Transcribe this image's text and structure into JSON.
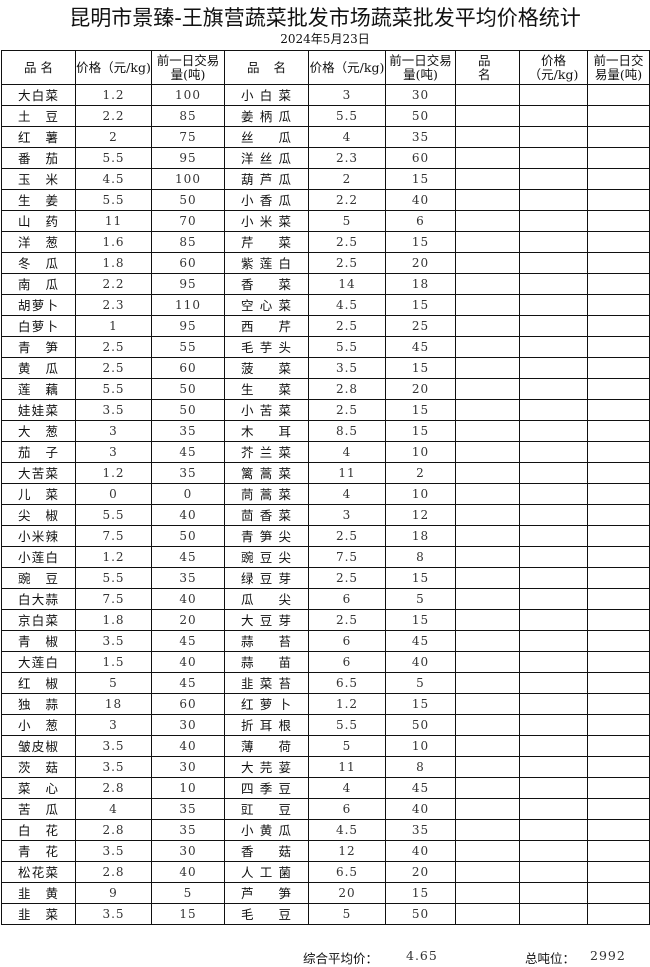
{
  "title": "昆明市景臻-王旗营蔬菜批发市场蔬菜批发平均价格统计",
  "date": "2024年5月23日",
  "headers": {
    "name": "品名",
    "price": "价格（元/kg)",
    "volume": "前一日交易量(吨)"
  },
  "left": [
    [
      "大白菜",
      "1.2",
      "100"
    ],
    [
      "土豆",
      "2.2",
      "85"
    ],
    [
      "红薯",
      "2",
      "75"
    ],
    [
      "番茄",
      "5.5",
      "95"
    ],
    [
      "玉米",
      "4.5",
      "100"
    ],
    [
      "生姜",
      "5.5",
      "50"
    ],
    [
      "山药",
      "11",
      "70"
    ],
    [
      "洋葱",
      "1.6",
      "85"
    ],
    [
      "冬瓜",
      "1.8",
      "60"
    ],
    [
      "南瓜",
      "2.2",
      "95"
    ],
    [
      "胡萝卜",
      "2.3",
      "110"
    ],
    [
      "白萝卜",
      "1",
      "95"
    ],
    [
      "青笋",
      "2.5",
      "55"
    ],
    [
      "黄瓜",
      "2.5",
      "60"
    ],
    [
      "莲藕",
      "5.5",
      "50"
    ],
    [
      "娃娃菜",
      "3.5",
      "50"
    ],
    [
      "大葱",
      "3",
      "35"
    ],
    [
      "茄子",
      "3",
      "45"
    ],
    [
      "大苦菜",
      "1.2",
      "35"
    ],
    [
      "儿菜",
      "0",
      "0"
    ],
    [
      "尖椒",
      "5.5",
      "40"
    ],
    [
      "小米辣",
      "7.5",
      "50"
    ],
    [
      "小莲白",
      "1.2",
      "45"
    ],
    [
      "豌豆",
      "5.5",
      "35"
    ],
    [
      "白大蒜",
      "7.5",
      "40"
    ],
    [
      "京白菜",
      "1.8",
      "20"
    ],
    [
      "青椒",
      "3.5",
      "45"
    ],
    [
      "大莲白",
      "1.5",
      "40"
    ],
    [
      "红椒",
      "5",
      "45"
    ],
    [
      "独蒜",
      "18",
      "60"
    ],
    [
      "小葱",
      "3",
      "30"
    ],
    [
      "皱皮椒",
      "3.5",
      "40"
    ],
    [
      "茨菇",
      "3.5",
      "30"
    ],
    [
      "菜心",
      "2.8",
      "10"
    ],
    [
      "苦瓜",
      "4",
      "35"
    ],
    [
      "白花",
      "2.8",
      "35"
    ],
    [
      "青花",
      "3.5",
      "30"
    ],
    [
      "松花菜",
      "2.8",
      "40"
    ],
    [
      "韭黄",
      "9",
      "5"
    ],
    [
      "韭菜",
      "3.5",
      "15"
    ]
  ],
  "right": [
    [
      "小白菜",
      "3",
      "30"
    ],
    [
      "姜柄瓜",
      "5.5",
      "50"
    ],
    [
      "丝瓜",
      "4",
      "35"
    ],
    [
      "洋丝瓜",
      "2.3",
      "60"
    ],
    [
      "葫芦瓜",
      "2",
      "15"
    ],
    [
      "小香瓜",
      "2.2",
      "40"
    ],
    [
      "小米菜",
      "5",
      "6"
    ],
    [
      "芹菜",
      "2.5",
      "15"
    ],
    [
      "紫莲白",
      "2.5",
      "20"
    ],
    [
      "香菜",
      "14",
      "18"
    ],
    [
      "空心菜",
      "4.5",
      "15"
    ],
    [
      "西芹",
      "2.5",
      "25"
    ],
    [
      "毛芋头",
      "5.5",
      "45"
    ],
    [
      "菠菜",
      "3.5",
      "15"
    ],
    [
      "生菜",
      "2.8",
      "20"
    ],
    [
      "小苦菜",
      "2.5",
      "15"
    ],
    [
      "木耳",
      "8.5",
      "15"
    ],
    [
      "芥兰菜",
      "4",
      "10"
    ],
    [
      "篱蒿菜",
      "11",
      "2"
    ],
    [
      "茼蒿菜",
      "4",
      "10"
    ],
    [
      "茴香菜",
      "3",
      "12"
    ],
    [
      "青笋尖",
      "2.5",
      "18"
    ],
    [
      "豌豆尖",
      "7.5",
      "8"
    ],
    [
      "绿豆芽",
      "2.5",
      "15"
    ],
    [
      "瓜尖",
      "6",
      "5"
    ],
    [
      "大豆芽",
      "2.5",
      "15"
    ],
    [
      "蒜苔",
      "6",
      "45"
    ],
    [
      "蒜苗",
      "6",
      "40"
    ],
    [
      "韭菜苔",
      "6.5",
      "5"
    ],
    [
      "红萝卜",
      "1.2",
      "15"
    ],
    [
      "折耳根",
      "5.5",
      "50"
    ],
    [
      "薄荷",
      "5",
      "10"
    ],
    [
      "大芫荽",
      "11",
      "8"
    ],
    [
      "四季豆",
      "4",
      "45"
    ],
    [
      "豇豆",
      "6",
      "40"
    ],
    [
      "小黄瓜",
      "4.5",
      "35"
    ],
    [
      "香菇",
      "12",
      "40"
    ],
    [
      "人工菌",
      "6.5",
      "20"
    ],
    [
      "芦笋",
      "20",
      "15"
    ],
    [
      "毛豆",
      "5",
      "50"
    ]
  ],
  "footer": {
    "avg_label": "综合平均价：",
    "avg_value": "4.65",
    "total_label": "总吨位：",
    "total_value": "2992"
  }
}
